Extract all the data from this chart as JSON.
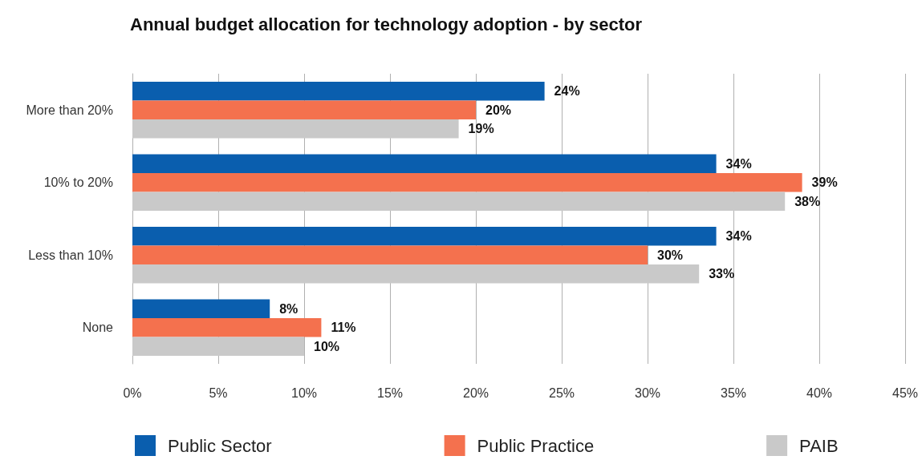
{
  "chart_data": {
    "type": "bar",
    "orientation": "horizontal",
    "title": "Annual budget allocation for technology adoption - by sector",
    "categories": [
      "More than 20%",
      "10% to 20%",
      "Less than 10%",
      "None"
    ],
    "series": [
      {
        "name": "Public Sector",
        "color": "#0a5eae",
        "values": [
          24,
          34,
          34,
          8
        ],
        "value_labels": [
          "24%",
          "34%",
          "34%",
          "8%"
        ]
      },
      {
        "name": "Public Practice",
        "color": "#f4714e",
        "values": [
          20,
          39,
          30,
          11
        ],
        "value_labels": [
          "20%",
          "39%",
          "30%",
          "11%"
        ]
      },
      {
        "name": "PAIB",
        "color": "#c9c9c9",
        "values": [
          19,
          38,
          33,
          10
        ],
        "value_labels": [
          "19%",
          "38%",
          "33%",
          "10%"
        ]
      }
    ],
    "xlim": [
      0,
      45
    ],
    "xticks": [
      {
        "value": 0,
        "label": "0%"
      },
      {
        "value": 5,
        "label": "5%"
      },
      {
        "value": 10,
        "label": "10%"
      },
      {
        "value": 15,
        "label": "15%"
      },
      {
        "value": 20,
        "label": "20%"
      },
      {
        "value": 25,
        "label": "25%"
      },
      {
        "value": 30,
        "label": "30%"
      },
      {
        "value": 35,
        "label": "35%"
      },
      {
        "value": 40,
        "label": "40%"
      },
      {
        "value": 45,
        "label": "45%"
      }
    ],
    "grid": "x",
    "legend": "bottom"
  }
}
